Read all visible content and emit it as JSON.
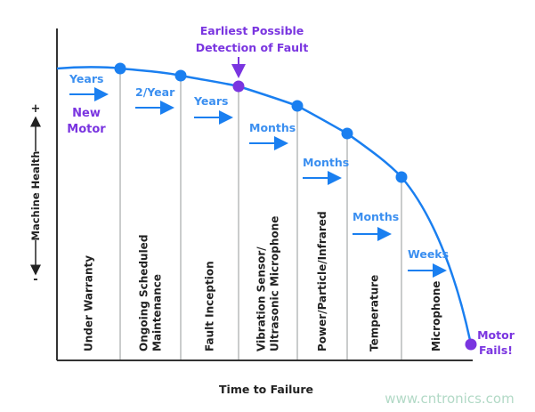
{
  "colors": {
    "curve": "#1a7ff0",
    "purple": "#7a35e0",
    "label_blue": "#3b8ff0",
    "axis": "#333333",
    "divider": "#b8bcbc"
  },
  "annotation": {
    "line1": "Earliest Possible",
    "line2": "Detection of Fault"
  },
  "start": {
    "line1": "New",
    "line2": "Motor"
  },
  "end": {
    "line1": "Motor",
    "line2": "Fails!"
  },
  "y_axis": {
    "label": "Machine Health",
    "plus": "+",
    "minus": "-"
  },
  "x_axis": {
    "label": "Time to Failure"
  },
  "stages": [
    {
      "lines": [
        "Under Warranty"
      ],
      "interval": "Years"
    },
    {
      "lines": [
        "Ongoing Scheduled",
        "Maintenance"
      ],
      "interval": "2/Year"
    },
    {
      "lines": [
        "Fault Inception"
      ],
      "interval": "Years"
    },
    {
      "lines": [
        "Vibration Sensor/",
        "Ultrasonic Microphone"
      ],
      "interval": "Months"
    },
    {
      "lines": [
        "Power/Particle/Infrared"
      ],
      "interval": "Months"
    },
    {
      "lines": [
        "Temperature"
      ],
      "interval": "Months"
    },
    {
      "lines": [
        "Microphone"
      ],
      "interval": "Weeks"
    }
  ],
  "watermark": "www.cntronics.com"
}
